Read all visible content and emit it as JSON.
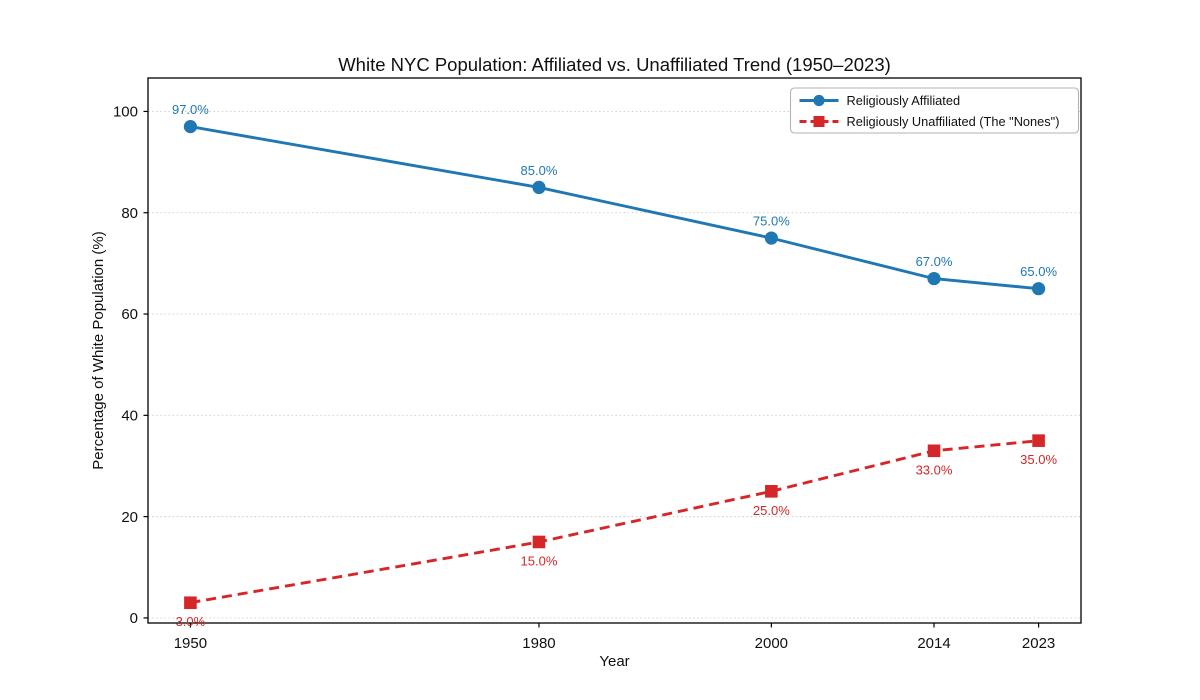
{
  "page": {
    "background": "#ffffff"
  },
  "chart_data": {
    "type": "line",
    "title": "White NYC Population: Affiliated vs. Unaffiliated Trend (1950–2023)",
    "xlabel": "Year",
    "ylabel": "Percentage of White Population (%)",
    "x": [
      1950,
      1980,
      2000,
      2014,
      2023
    ],
    "x_tick_labels": [
      "1950",
      "1980",
      "2000",
      "2014",
      "2023"
    ],
    "y_ticks": [
      0,
      20,
      40,
      60,
      80,
      100
    ],
    "xlim": [
      1946.35,
      2026.65
    ],
    "ylim": [
      -1,
      106.6
    ],
    "grid": {
      "axis": "y",
      "style": "dotted",
      "color": "#cccccc"
    },
    "axis_color": "#000000",
    "legend": {
      "position": "upper-right",
      "border_color": "#b3b3b3",
      "background": "#ffffff"
    },
    "series": [
      {
        "name": "Religiously Affiliated",
        "values": [
          97,
          85,
          75,
          67,
          65
        ],
        "point_labels": [
          "97.0%",
          "85.0%",
          "75.0%",
          "67.0%",
          "65.0%"
        ],
        "label_placement": "above",
        "color": "#1f77b4",
        "marker": "circle",
        "line_style": "solid"
      },
      {
        "name": "Religiously Unaffiliated (The \"Nones\")",
        "values": [
          3,
          15,
          25,
          33,
          35
        ],
        "point_labels": [
          "3.0%",
          "15.0%",
          "25.0%",
          "33.0%",
          "35.0%"
        ],
        "label_placement": "below",
        "color": "#d62728",
        "marker": "square",
        "line_style": "dashed"
      }
    ]
  }
}
